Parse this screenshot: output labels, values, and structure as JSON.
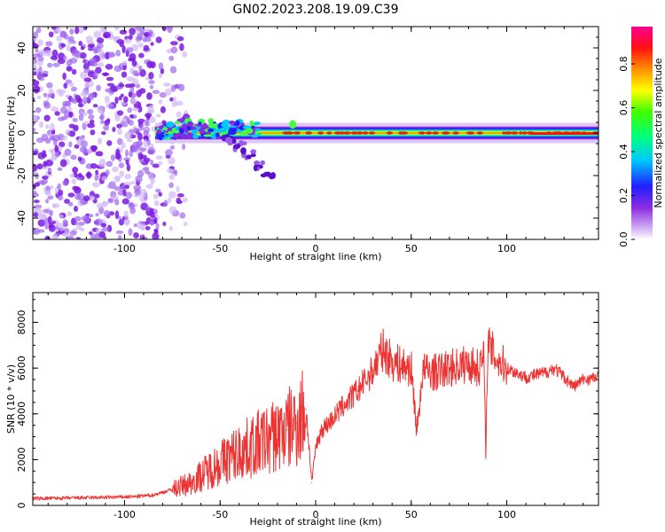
{
  "title": "GN02.2023.208.19.09.C39",
  "chart_data": [
    {
      "type": "heatmap",
      "xlabel": "Height of straight line (km)",
      "ylabel": "Frequency (Hz)",
      "xlim": [
        -148,
        148
      ],
      "ylim": [
        -50,
        50
      ],
      "xticks": [
        -100,
        -50,
        0,
        50,
        100
      ],
      "yticks": [
        -40,
        -20,
        0,
        20,
        40
      ],
      "grid": false,
      "colorbar": {
        "label": "Normalized spectral amplitude",
        "range": [
          0,
          0.97
        ],
        "ticks": [
          0.0,
          0.2,
          0.4,
          0.6,
          0.8
        ],
        "colors": [
          "#ffffff",
          "#c9a3f0",
          "#8a2be2",
          "#0000ff",
          "#00c8ff",
          "#00ff40",
          "#ffff00",
          "#ff8000",
          "#ff0000",
          "#ff0090"
        ]
      },
      "noise_region_x": [
        -148,
        -75
      ],
      "signal_band_center_hz": 0,
      "signal_band_half_width_hz": 3,
      "branch_points": [
        [
          -45,
          -3
        ],
        [
          -40,
          -6
        ],
        [
          -35,
          -10
        ],
        [
          -30,
          -15
        ],
        [
          -25,
          -20
        ]
      ]
    },
    {
      "type": "line",
      "xlabel": "Height of straight line (km)",
      "ylabel": "SNR (10 * v/v)",
      "xlim": [
        -148,
        148
      ],
      "ylim": [
        0,
        9300
      ],
      "xticks": [
        -100,
        -50,
        0,
        50,
        100
      ],
      "yticks": [
        0,
        2000,
        4000,
        6000,
        8000
      ],
      "grid": false,
      "series": [
        {
          "name": "SNR",
          "color": "#ee3333",
          "points": [
            [
              -148,
              300
            ],
            [
              -130,
              320
            ],
            [
              -110,
              350
            ],
            [
              -95,
              380
            ],
            [
              -85,
              450
            ],
            [
              -75,
              700
            ],
            [
              -65,
              1000
            ],
            [
              -55,
              1600
            ],
            [
              -45,
              2100
            ],
            [
              -38,
              2400
            ],
            [
              -30,
              2700
            ],
            [
              -22,
              3000
            ],
            [
              -15,
              3300
            ],
            [
              -10,
              3600
            ],
            [
              -5,
              4200
            ],
            [
              -2,
              1000
            ],
            [
              0,
              2500
            ],
            [
              3,
              3300
            ],
            [
              8,
              3700
            ],
            [
              15,
              4400
            ],
            [
              22,
              5000
            ],
            [
              30,
              5900
            ],
            [
              35,
              6800
            ],
            [
              40,
              6300
            ],
            [
              45,
              6100
            ],
            [
              50,
              6000
            ],
            [
              53,
              3200
            ],
            [
              56,
              5900
            ],
            [
              62,
              5800
            ],
            [
              70,
              6000
            ],
            [
              80,
              6200
            ],
            [
              85,
              6000
            ],
            [
              88,
              6500
            ],
            [
              89,
              2300
            ],
            [
              90,
              7000
            ],
            [
              95,
              6400
            ],
            [
              100,
              6000
            ],
            [
              110,
              5600
            ],
            [
              120,
              5800
            ],
            [
              125,
              6000
            ],
            [
              130,
              5600
            ],
            [
              135,
              5200
            ],
            [
              140,
              5500
            ],
            [
              148,
              5600
            ]
          ]
        }
      ]
    }
  ]
}
